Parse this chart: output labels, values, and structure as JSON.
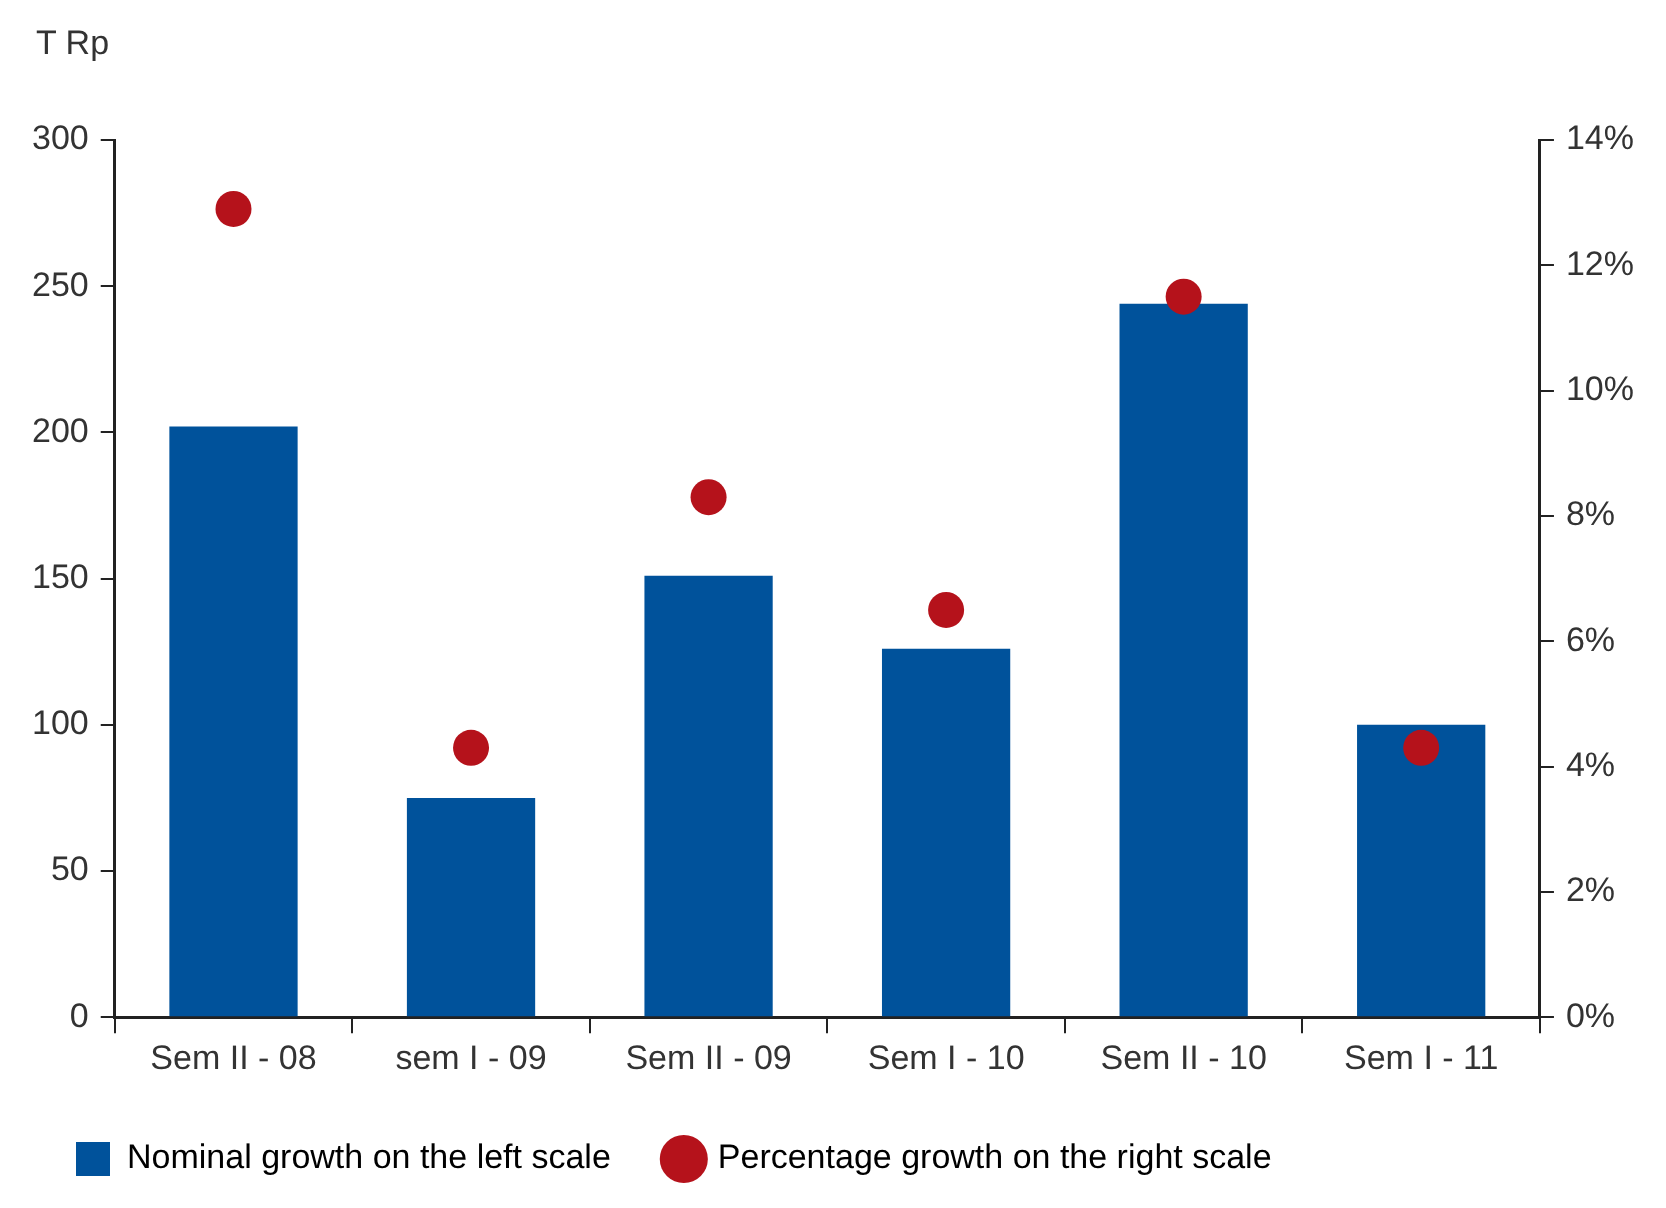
{
  "chart_data": {
    "type": "bar",
    "ylabel": "T Rp",
    "categories": [
      "Sem II - 08",
      "sem I - 09",
      "Sem II - 09",
      "Sem I - 10",
      "Sem II - 10",
      "Sem I - 11"
    ],
    "series": [
      {
        "name": "Nominal growth on the left scale",
        "color": "#00529b",
        "values": [
          202,
          75,
          151,
          126,
          244,
          100
        ]
      },
      {
        "name": "Percentage growth on the right scale",
        "type": "scatter",
        "axis": "y2",
        "color": "#b5121b",
        "values": [
          12.9,
          4.3,
          8.3,
          6.5,
          11.5,
          4.3
        ]
      }
    ],
    "ylim": [
      0,
      300
    ],
    "yticks": [
      0,
      50,
      100,
      150,
      200,
      250,
      300
    ],
    "y2lim": [
      0,
      14
    ],
    "y2ticks": [
      {
        "value": 0,
        "label": "0%"
      },
      {
        "value": 2,
        "label": "2%"
      },
      {
        "value": 4,
        "label": "4%"
      },
      {
        "value": 6,
        "label": "6%"
      },
      {
        "value": 8,
        "label": "8%"
      },
      {
        "value": 10,
        "label": "10%"
      },
      {
        "value": 12,
        "label": "12%"
      },
      {
        "value": 14,
        "label": "14%"
      }
    ],
    "grid": false,
    "legend": "bottom",
    "marker": "circle"
  }
}
